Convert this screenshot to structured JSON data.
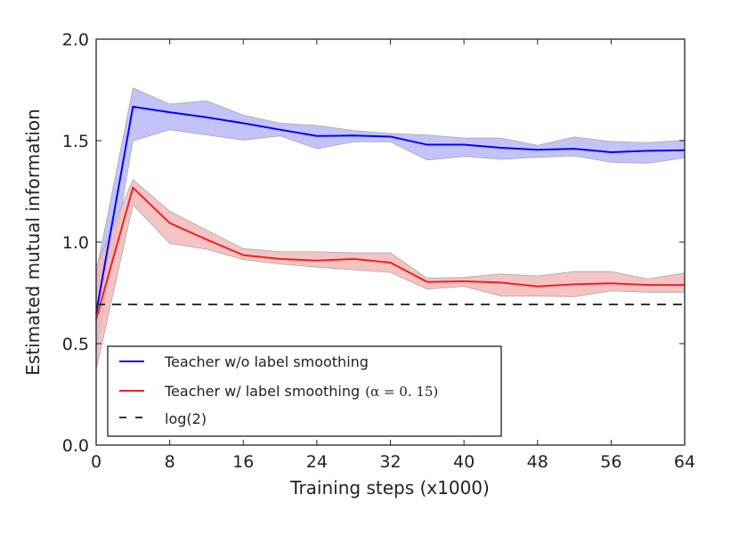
{
  "chart_data": {
    "type": "line",
    "title": "",
    "xlabel": "Training steps (x1000)",
    "ylabel": "Estimated mutual information",
    "xlim": [
      0,
      64
    ],
    "ylim": [
      0.0,
      2.0
    ],
    "xticks": [
      "0",
      "8",
      "16",
      "24",
      "32",
      "40",
      "48",
      "56",
      "64"
    ],
    "yticks": [
      "0.0",
      "0.5",
      "1.0",
      "1.5",
      "2.0"
    ],
    "grid": false,
    "legend_placement": "lower-left",
    "x": [
      0,
      4,
      8,
      12,
      16,
      20,
      24,
      28,
      32,
      36,
      40,
      44,
      48,
      52,
      56,
      60,
      64
    ],
    "series": [
      {
        "name": "Teacher w/o label smoothing",
        "color": "#0000ff",
        "band_color": "#b8b8f8",
        "values": [
          0.65,
          1.667,
          1.64,
          1.615,
          1.586,
          1.554,
          1.523,
          1.525,
          1.52,
          1.48,
          1.48,
          1.465,
          1.455,
          1.46,
          1.443,
          1.45,
          1.453
        ],
        "upper": [
          0.85,
          1.76,
          1.68,
          1.696,
          1.626,
          1.586,
          1.575,
          1.55,
          1.535,
          1.528,
          1.513,
          1.513,
          1.477,
          1.518,
          1.496,
          1.49,
          1.503
        ],
        "lower": [
          0.45,
          1.499,
          1.554,
          1.528,
          1.503,
          1.523,
          1.46,
          1.494,
          1.494,
          1.404,
          1.422,
          1.408,
          1.418,
          1.425,
          1.393,
          1.389,
          1.415
        ]
      },
      {
        "name": "Teacher w/ label smoothing",
        "name_math": "(α = 0. 15)",
        "color": "#ee2222",
        "band_color": "#f2b8b8",
        "values": [
          0.62,
          1.268,
          1.094,
          1.013,
          0.936,
          0.917,
          0.909,
          0.917,
          0.899,
          0.804,
          0.807,
          0.801,
          0.782,
          0.792,
          0.797,
          0.789,
          0.789
        ],
        "upper": [
          0.88,
          1.308,
          1.152,
          1.06,
          0.968,
          0.953,
          0.953,
          0.947,
          0.947,
          0.822,
          0.826,
          0.843,
          0.833,
          0.855,
          0.855,
          0.819,
          0.848
        ],
        "lower": [
          0.37,
          1.184,
          0.994,
          0.965,
          0.914,
          0.892,
          0.877,
          0.863,
          0.851,
          0.768,
          0.782,
          0.734,
          0.734,
          0.731,
          0.76,
          0.753,
          0.753
        ]
      },
      {
        "name": "log(2)",
        "color": "#333333",
        "style": "dashed",
        "constant": 0.693
      }
    ]
  }
}
